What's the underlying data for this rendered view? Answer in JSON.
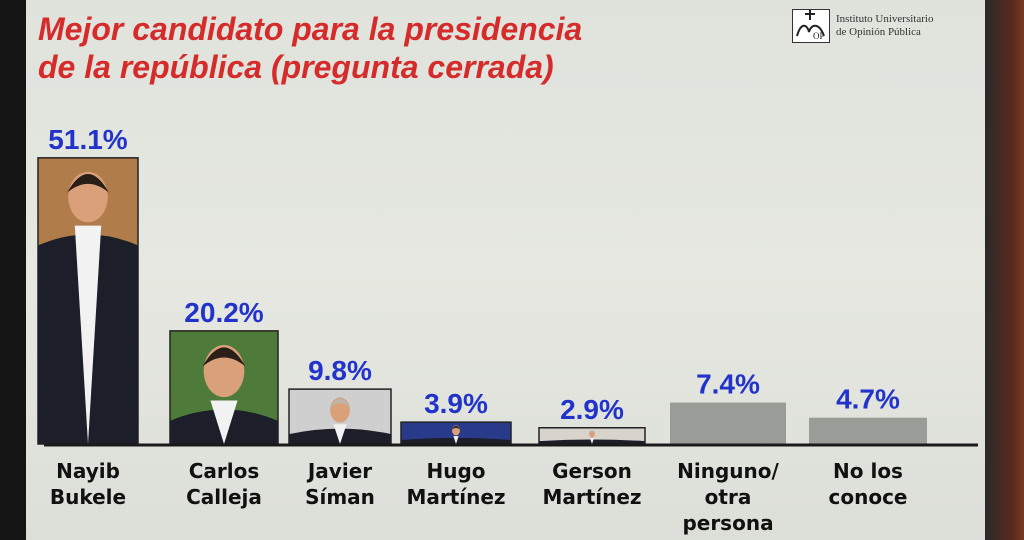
{
  "logo": {
    "line1": "Instituto Universitario",
    "line2": "de Opinión Pública"
  },
  "chart_data": {
    "type": "bar",
    "title": "Mejor candidato para la presidencia de la república (pregunta cerrada)",
    "title_lines": [
      "Mejor candidato para la presidencia",
      "de la república (pregunta cerrada)"
    ],
    "categories": [
      "Nayib Bukele",
      "Carlos Calleja",
      "Javier Síman",
      "Hugo Martínez",
      "Gerson Martínez",
      "Ninguno/ otra persona",
      "No los conoce"
    ],
    "category_lines": [
      [
        "Nayib",
        "Bukele"
      ],
      [
        "Carlos",
        "Calleja"
      ],
      [
        "Javier",
        "Síman"
      ],
      [
        "Hugo",
        "Martínez"
      ],
      [
        "Gerson",
        "Martínez"
      ],
      [
        "Ninguno/",
        "otra",
        "persona"
      ],
      [
        "No los",
        "conoce"
      ]
    ],
    "values": [
      51.1,
      20.2,
      9.8,
      3.9,
      2.9,
      7.4,
      4.7
    ],
    "value_labels": [
      "51.1%",
      "20.2%",
      "9.8%",
      "3.9%",
      "2.9%",
      "7.4%",
      "4.7%"
    ],
    "bar_kind": [
      "photo",
      "photo",
      "photo",
      "photo",
      "photo",
      "plain",
      "plain"
    ],
    "ylim": [
      0,
      55
    ],
    "grid": false,
    "legend": "none",
    "colors": {
      "title": "#d62b2b",
      "value_label": "#2233cc",
      "plain_bar": "#9a9c98",
      "axis": "#1a1a1a",
      "category_label": "#111111"
    }
  }
}
